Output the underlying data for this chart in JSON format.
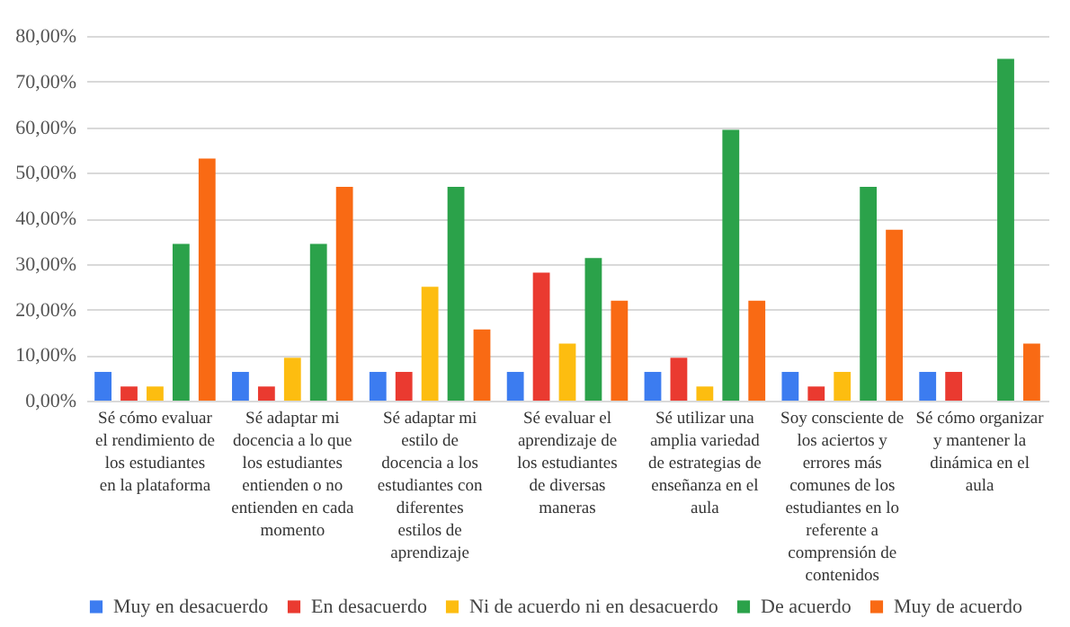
{
  "chart_data": {
    "type": "bar",
    "categories": [
      "Sé cómo evaluar el rendimiento de los estudiantes en la plataforma",
      "Sé adaptar mi docencia a lo que los estudiantes entienden o no entienden en cada momento",
      "Sé adaptar mi estilo de docencia a los estudiantes con diferentes estilos de aprendizaje",
      "Sé evaluar el aprendizaje de los estudiantes de diversas maneras",
      "Sé utilizar una amplia variedad de estrategias de enseñanza en el aula",
      "Soy consciente de los aciertos y errores más comunes de los estudiantes en lo referente a comprensión de contenidos",
      "Sé cómo organizar y mantener la dinámica en el aula"
    ],
    "series": [
      {
        "name": "Muy en desacuerdo",
        "color": "#3c7cf0",
        "values": [
          6.3,
          6.3,
          6.3,
          6.3,
          6.3,
          6.3,
          6.3
        ]
      },
      {
        "name": "En desacuerdo",
        "color": "#ea3a30",
        "values": [
          3.1,
          3.1,
          6.3,
          28.1,
          9.4,
          3.1,
          6.3
        ]
      },
      {
        "name": "Ni de acuerdo ni en desacuerdo",
        "color": "#fdbd10",
        "values": [
          3.1,
          9.4,
          25,
          12.5,
          3.1,
          6.3,
          0
        ]
      },
      {
        "name": "De acuerdo",
        "color": "#2ba24a",
        "values": [
          34.4,
          34.4,
          46.9,
          31.3,
          59.4,
          46.9,
          75
        ]
      },
      {
        "name": "Muy de acuerdo",
        "color": "#f96a14",
        "values": [
          53.1,
          46.9,
          15.6,
          21.9,
          21.9,
          37.5,
          12.5
        ]
      }
    ],
    "ylim": [
      0,
      80
    ],
    "yticks": [
      {
        "value": 0,
        "label": "0,00%"
      },
      {
        "value": 10,
        "label": "10,00%"
      },
      {
        "value": 20,
        "label": "20,00%"
      },
      {
        "value": 30,
        "label": "30,00%"
      },
      {
        "value": 40,
        "label": "40,00%"
      },
      {
        "value": 50,
        "label": "50,00%"
      },
      {
        "value": 60,
        "label": "60,00%"
      },
      {
        "value": 70,
        "label": "70,00%"
      },
      {
        "value": 80,
        "label": "80,00%"
      }
    ],
    "grid": "y",
    "legend": "bottom"
  }
}
